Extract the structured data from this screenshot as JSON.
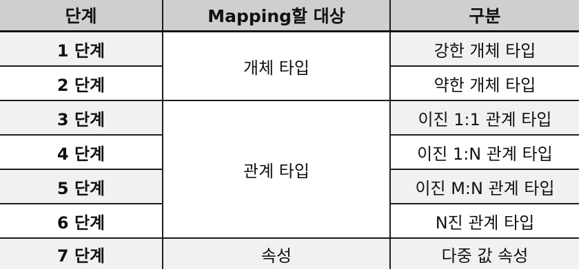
{
  "table": {
    "headers": [
      "단계",
      "Mapping할 대상",
      "구분"
    ],
    "rows": [
      {
        "step": "1 단계",
        "target": "개체 타입",
        "kind": "강한 개체 타입"
      },
      {
        "step": "2 단계",
        "target": "",
        "kind": "약한 개체 타입"
      },
      {
        "step": "3 단계",
        "target": "관계 타입",
        "kind": "이진 1:1 관계 타입"
      },
      {
        "step": "4 단계",
        "target": "",
        "kind": "이진 1:N 관계 타입"
      },
      {
        "step": "5 단계",
        "target": "",
        "kind": "이진 M:N 관계 타입"
      },
      {
        "step": "6 단계",
        "target": "",
        "kind": "N진 관계 타입"
      },
      {
        "step": "7 단계",
        "target": "속성",
        "kind": "다중 값 속성"
      }
    ]
  }
}
